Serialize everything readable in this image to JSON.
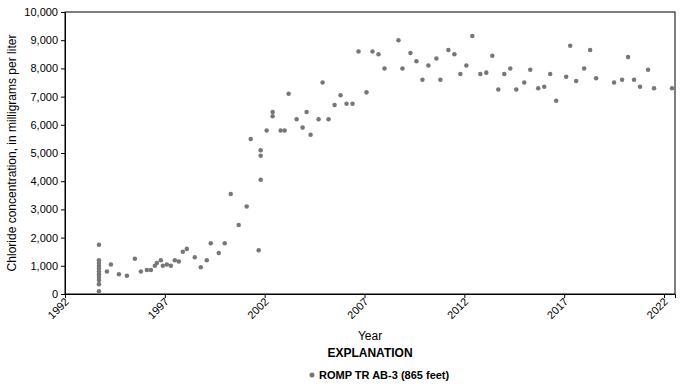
{
  "chart_data": {
    "type": "scatter",
    "x_label": "Year",
    "y_label": "Chloride concentration, in milligrams per liter",
    "legend_title": "EXPLANATION",
    "legend": "bottom",
    "grid": false,
    "xlim": [
      1992,
      2022.55
    ],
    "xticks": [
      1992,
      1997,
      2002,
      2007,
      2012,
      2017,
      2022
    ],
    "ylim": [
      0,
      10000
    ],
    "yticks": [
      0,
      {
        "value": 1000,
        "label": "1,000"
      },
      {
        "value": 2000,
        "label": "2,000"
      },
      {
        "value": 3000,
        "label": "3,000"
      },
      {
        "value": 4000,
        "label": "4,000"
      },
      {
        "value": 5000,
        "label": "5,000"
      },
      {
        "value": 6000,
        "label": "6,000"
      },
      {
        "value": 7000,
        "label": "7,000"
      },
      {
        "value": 8000,
        "label": "8,000"
      },
      {
        "value": 9000,
        "label": "9,000"
      },
      {
        "value": 10000,
        "label": "10,000"
      }
    ],
    "x": [
      1993.7,
      1993.7,
      1993.7,
      1993.7,
      1993.7,
      1993.7,
      1993.7,
      1993.7,
      1993.7,
      1993.7,
      1993.7,
      1994.1,
      1994.3,
      1994.7,
      1995.1,
      1995.5,
      1995.8,
      1996.1,
      1996.3,
      1996.5,
      1996.6,
      1996.8,
      1996.9,
      1997.1,
      1997.3,
      1997.5,
      1997.7,
      1997.9,
      1998.1,
      1998.5,
      1998.8,
      1999.1,
      1999.3,
      1999.7,
      2000.0,
      2000.3,
      2000.7,
      2001.1,
      2001.3,
      2001.7,
      2001.8,
      2001.8,
      2001.8,
      2002.1,
      2002.4,
      2002.4,
      2002.8,
      2003.0,
      2003.2,
      2003.6,
      2003.9,
      2004.1,
      2004.3,
      2004.7,
      2004.9,
      2005.2,
      2005.5,
      2005.8,
      2006.1,
      2006.4,
      2006.7,
      2007.1,
      2007.4,
      2007.7,
      2008.0,
      2008.7,
      2008.9,
      2009.3,
      2009.6,
      2009.9,
      2010.2,
      2010.6,
      2010.8,
      2011.2,
      2011.5,
      2011.8,
      2012.1,
      2012.4,
      2012.8,
      2013.1,
      2013.4,
      2013.7,
      2014.0,
      2014.3,
      2014.6,
      2015.0,
      2015.3,
      2015.7,
      2016.0,
      2016.3,
      2016.6,
      2017.1,
      2017.3,
      2017.6,
      2018.0,
      2018.3,
      2018.6,
      2019.5,
      2019.9,
      2020.2,
      2020.5,
      2020.8,
      2021.2,
      2021.5,
      2022.4
    ],
    "series": [
      {
        "name": "ROMP TR AB-3 (865 feet)",
        "color": "#777777",
        "marker": "circle",
        "values": [
          1750,
          1200,
          1100,
          1000,
          900,
          800,
          700,
          600,
          500,
          350,
          100,
          800,
          1050,
          700,
          650,
          1250,
          800,
          850,
          850,
          1000,
          1100,
          1200,
          1000,
          1050,
          1000,
          1200,
          1150,
          1500,
          1600,
          1300,
          950,
          1200,
          1800,
          1450,
          1800,
          3550,
          2450,
          3100,
          5500,
          1550,
          4050,
          4900,
          5100,
          5800,
          6300,
          6450,
          5800,
          5800,
          7100,
          6200,
          5900,
          6450,
          5650,
          6200,
          7500,
          6200,
          6700,
          7050,
          6750,
          6750,
          8600,
          7150,
          8600,
          8500,
          8000,
          9000,
          8000,
          8550,
          8250,
          7600,
          8100,
          8350,
          7600,
          8650,
          8500,
          7800,
          8100,
          9150,
          7800,
          7850,
          8450,
          7250,
          7800,
          8000,
          7250,
          7500,
          7950,
          7300,
          7350,
          7800,
          6850,
          7700,
          8800,
          7550,
          8000,
          8650,
          7650,
          7500,
          7600,
          8400,
          7600,
          7350,
          7950,
          7300,
          7300
        ]
      }
    ]
  }
}
